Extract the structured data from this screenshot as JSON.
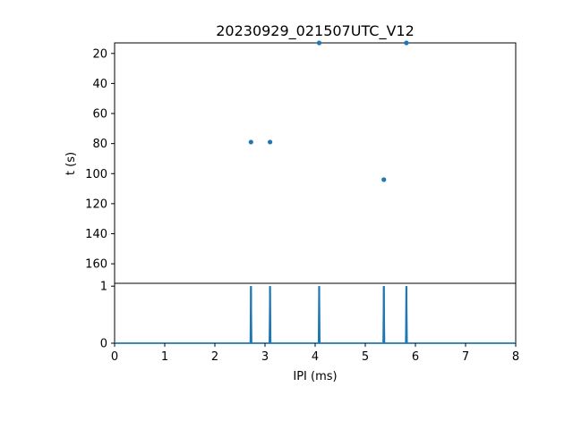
{
  "chart_data": [
    {
      "type": "scatter",
      "title": "20230929_021507UTC_V12",
      "xlabel": "",
      "ylabel": "t (s)",
      "xlim": [
        0,
        8
      ],
      "ylim": [
        173,
        13
      ],
      "y_inverted": true,
      "yticks": [
        20,
        40,
        60,
        80,
        100,
        120,
        140,
        160
      ],
      "grid": false,
      "series": [
        {
          "color": "#1f77b4",
          "points": [
            {
              "x": 2.72,
              "y": 79
            },
            {
              "x": 3.1,
              "y": 79
            },
            {
              "x": 4.08,
              "y": 13
            },
            {
              "x": 5.37,
              "y": 104
            },
            {
              "x": 5.82,
              "y": 13
            }
          ]
        }
      ]
    },
    {
      "type": "line",
      "title": "",
      "xlabel": "IPI (ms)",
      "ylabel": "",
      "xlim": [
        0,
        8
      ],
      "ylim": [
        0,
        1.05
      ],
      "xticks": [
        0,
        1,
        2,
        3,
        4,
        5,
        6,
        7,
        8
      ],
      "yticks": [
        0,
        1
      ],
      "grid": false,
      "series": [
        {
          "color": "#1f77b4",
          "peaks": [
            {
              "x": 2.72,
              "y": 1
            },
            {
              "x": 3.1,
              "y": 1
            },
            {
              "x": 4.08,
              "y": 1
            },
            {
              "x": 5.37,
              "y": 1
            },
            {
              "x": 5.82,
              "y": 1
            }
          ]
        }
      ]
    }
  ]
}
